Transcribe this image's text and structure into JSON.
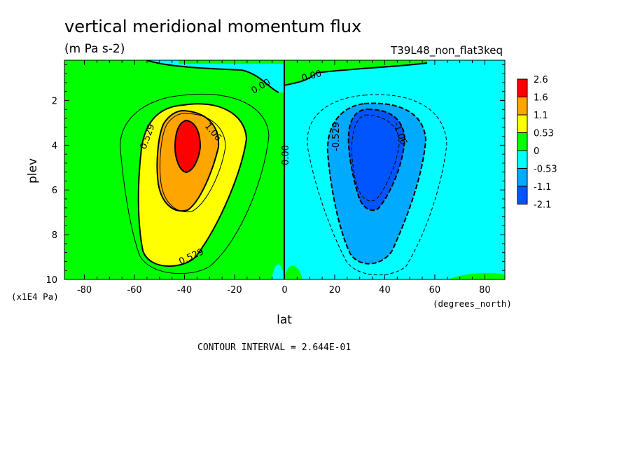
{
  "chart_data": {
    "type": "filled-contour",
    "title": "vertical meridional momentum flux",
    "units": "(m Pa s-2)",
    "dataset": "T39L48_non_flat3keq",
    "xlabel": "lat",
    "x_units": "(degrees_north)",
    "ylabel": "plev",
    "y_units": "(x1E4 Pa)",
    "xlim": [
      -88,
      88
    ],
    "ylim": [
      10,
      0.2
    ],
    "x_ticks": [
      -80,
      -60,
      -40,
      -20,
      0,
      20,
      40,
      60,
      80
    ],
    "y_ticks": [
      2,
      4,
      6,
      8,
      10
    ],
    "contour_interval_text": "CONTOUR INTERVAL = 2.644E-01",
    "contour_labels": [
      "0.529",
      "1.06",
      "0.529",
      "0.00",
      "0.00",
      "0.00",
      "-0.529",
      "-1.06"
    ],
    "colorbar": {
      "levels": [
        "2.6",
        "1.6",
        "1.1",
        "0.53",
        "0",
        "-0.53",
        "-1.1",
        "-2.1"
      ],
      "colors": [
        "#ff0000",
        "#ffa500",
        "#ffff00",
        "#00ff00",
        "#00ffff",
        "#00aaff",
        "#0055ff"
      ]
    },
    "features": [
      {
        "name": "southern positive maximum",
        "lat": -38,
        "plev": 4.0,
        "value_range": "1.6 to 2.6"
      },
      {
        "name": "northern negative minimum",
        "lat": 38,
        "plev": 4.2,
        "value_range": "-2.1 to -1.1"
      }
    ]
  }
}
